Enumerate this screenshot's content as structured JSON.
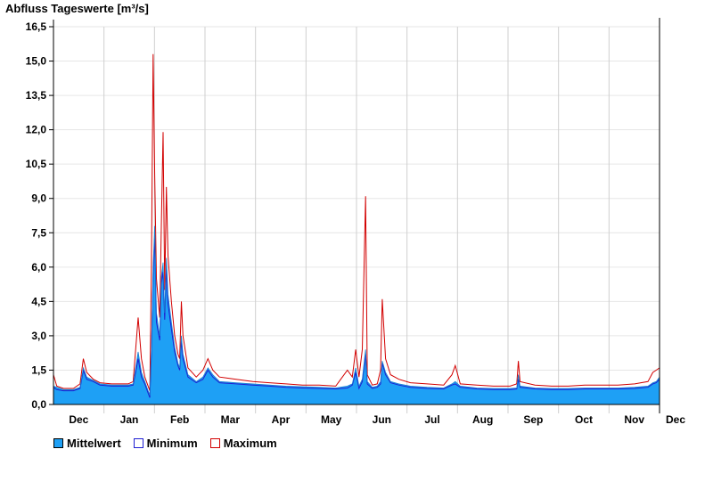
{
  "chart_data": {
    "type": "area",
    "title": "Abfluss Tageswerte [m³/s]",
    "xlabel": "",
    "ylabel": "",
    "ylim": [
      0,
      16.5
    ],
    "yticks": [
      "0,0",
      "1,5",
      "3,0",
      "4,5",
      "6,0",
      "7,5",
      "9,0",
      "10,5",
      "12,0",
      "13,5",
      "15,0",
      "16,5"
    ],
    "ytick_values": [
      0,
      1.5,
      3,
      4.5,
      6,
      7.5,
      9,
      10.5,
      12,
      13.5,
      15,
      16.5
    ],
    "months": [
      "Dec",
      "Jan",
      "Feb",
      "Mar",
      "Apr",
      "May",
      "Jun",
      "Jul",
      "Aug",
      "Sep",
      "Oct",
      "Nov",
      "Dec"
    ],
    "days_in_period": 365,
    "grid": true,
    "legend": "bottom-left",
    "colors": {
      "mean": "#1ea0f5",
      "minimum": "#1e1ed2",
      "maximum": "#d20000"
    },
    "series": [
      {
        "name": "Mittelwert",
        "points": [
          [
            0,
            0.8
          ],
          [
            2,
            0.75
          ],
          [
            6,
            0.65
          ],
          [
            12,
            0.65
          ],
          [
            16,
            0.75
          ],
          [
            18,
            1.6
          ],
          [
            20,
            1.2
          ],
          [
            24,
            1.05
          ],
          [
            28,
            0.9
          ],
          [
            35,
            0.85
          ],
          [
            45,
            0.85
          ],
          [
            48,
            0.9
          ],
          [
            51,
            2.3
          ],
          [
            53,
            1.4
          ],
          [
            55,
            1.0
          ],
          [
            57,
            0.6
          ],
          [
            58,
            0.4
          ],
          [
            59,
            2.4
          ],
          [
            60,
            6.0
          ],
          [
            61,
            7.8
          ],
          [
            62,
            4.0
          ],
          [
            64,
            3.0
          ],
          [
            65,
            5.6
          ],
          [
            66,
            6.2
          ],
          [
            67,
            4.0
          ],
          [
            68,
            6.4
          ],
          [
            69,
            4.8
          ],
          [
            71,
            3.6
          ],
          [
            73,
            2.5
          ],
          [
            75,
            1.8
          ],
          [
            76,
            1.6
          ],
          [
            77,
            3.0
          ],
          [
            78,
            2.2
          ],
          [
            81,
            1.3
          ],
          [
            86,
            1.0
          ],
          [
            90,
            1.2
          ],
          [
            93,
            1.6
          ],
          [
            96,
            1.3
          ],
          [
            100,
            1.0
          ],
          [
            110,
            0.95
          ],
          [
            120,
            0.9
          ],
          [
            130,
            0.85
          ],
          [
            140,
            0.8
          ],
          [
            150,
            0.78
          ],
          [
            160,
            0.75
          ],
          [
            170,
            0.72
          ],
          [
            177,
            0.8
          ],
          [
            180,
            0.9
          ],
          [
            182,
            1.6
          ],
          [
            184,
            0.8
          ],
          [
            186,
            1.1
          ],
          [
            188,
            2.4
          ],
          [
            189,
            1.0
          ],
          [
            192,
            0.75
          ],
          [
            195,
            0.8
          ],
          [
            197,
            1.0
          ],
          [
            198,
            1.9
          ],
          [
            200,
            1.4
          ],
          [
            203,
            1.0
          ],
          [
            208,
            0.9
          ],
          [
            215,
            0.8
          ],
          [
            225,
            0.75
          ],
          [
            235,
            0.72
          ],
          [
            240,
            0.9
          ],
          [
            242,
            1.0
          ],
          [
            245,
            0.8
          ],
          [
            255,
            0.72
          ],
          [
            265,
            0.7
          ],
          [
            275,
            0.7
          ],
          [
            279,
            0.72
          ],
          [
            280,
            1.3
          ],
          [
            281,
            0.8
          ],
          [
            290,
            0.72
          ],
          [
            300,
            0.7
          ],
          [
            310,
            0.7
          ],
          [
            320,
            0.72
          ],
          [
            330,
            0.72
          ],
          [
            340,
            0.72
          ],
          [
            350,
            0.75
          ],
          [
            358,
            0.8
          ],
          [
            361,
            0.95
          ],
          [
            363,
            1.0
          ],
          [
            365,
            1.2
          ]
        ]
      },
      {
        "name": "Minimum",
        "points": [
          [
            0,
            0.75
          ],
          [
            2,
            0.65
          ],
          [
            6,
            0.6
          ],
          [
            12,
            0.6
          ],
          [
            16,
            0.7
          ],
          [
            18,
            1.5
          ],
          [
            20,
            1.1
          ],
          [
            24,
            1.0
          ],
          [
            28,
            0.85
          ],
          [
            35,
            0.8
          ],
          [
            45,
            0.8
          ],
          [
            48,
            0.85
          ],
          [
            51,
            2.0
          ],
          [
            53,
            1.2
          ],
          [
            55,
            0.9
          ],
          [
            57,
            0.5
          ],
          [
            58,
            0.3
          ],
          [
            59,
            2.2
          ],
          [
            60,
            5.6
          ],
          [
            61,
            7.4
          ],
          [
            62,
            3.6
          ],
          [
            64,
            2.8
          ],
          [
            65,
            5.3
          ],
          [
            66,
            5.8
          ],
          [
            67,
            3.7
          ],
          [
            68,
            6.0
          ],
          [
            69,
            4.4
          ],
          [
            71,
            3.3
          ],
          [
            73,
            2.3
          ],
          [
            75,
            1.7
          ],
          [
            76,
            1.5
          ],
          [
            77,
            2.8
          ],
          [
            78,
            2.0
          ],
          [
            81,
            1.2
          ],
          [
            86,
            0.95
          ],
          [
            90,
            1.1
          ],
          [
            93,
            1.5
          ],
          [
            96,
            1.2
          ],
          [
            100,
            0.95
          ],
          [
            110,
            0.9
          ],
          [
            120,
            0.85
          ],
          [
            130,
            0.8
          ],
          [
            140,
            0.75
          ],
          [
            150,
            0.72
          ],
          [
            160,
            0.7
          ],
          [
            170,
            0.68
          ],
          [
            177,
            0.72
          ],
          [
            180,
            0.85
          ],
          [
            182,
            1.4
          ],
          [
            184,
            0.7
          ],
          [
            186,
            1.0
          ],
          [
            188,
            2.2
          ],
          [
            189,
            0.9
          ],
          [
            192,
            0.7
          ],
          [
            195,
            0.75
          ],
          [
            197,
            0.9
          ],
          [
            198,
            1.8
          ],
          [
            200,
            1.3
          ],
          [
            203,
            0.95
          ],
          [
            208,
            0.85
          ],
          [
            215,
            0.75
          ],
          [
            225,
            0.7
          ],
          [
            235,
            0.68
          ],
          [
            240,
            0.85
          ],
          [
            242,
            0.9
          ],
          [
            245,
            0.75
          ],
          [
            255,
            0.68
          ],
          [
            265,
            0.65
          ],
          [
            275,
            0.65
          ],
          [
            279,
            0.68
          ],
          [
            280,
            1.1
          ],
          [
            281,
            0.75
          ],
          [
            290,
            0.68
          ],
          [
            300,
            0.65
          ],
          [
            310,
            0.65
          ],
          [
            320,
            0.68
          ],
          [
            330,
            0.68
          ],
          [
            340,
            0.68
          ],
          [
            350,
            0.7
          ],
          [
            358,
            0.75
          ],
          [
            361,
            0.9
          ],
          [
            363,
            0.95
          ],
          [
            365,
            1.1
          ]
        ]
      },
      {
        "name": "Maximum",
        "points": [
          [
            0,
            1.3
          ],
          [
            2,
            0.8
          ],
          [
            6,
            0.7
          ],
          [
            12,
            0.7
          ],
          [
            16,
            0.9
          ],
          [
            18,
            2.0
          ],
          [
            20,
            1.4
          ],
          [
            24,
            1.1
          ],
          [
            28,
            0.95
          ],
          [
            35,
            0.9
          ],
          [
            45,
            0.9
          ],
          [
            48,
            1.0
          ],
          [
            51,
            3.8
          ],
          [
            53,
            2.0
          ],
          [
            55,
            1.2
          ],
          [
            57,
            0.8
          ],
          [
            58,
            0.6
          ],
          [
            59,
            6.0
          ],
          [
            60,
            15.3
          ],
          [
            61,
            10.0
          ],
          [
            62,
            5.5
          ],
          [
            64,
            3.8
          ],
          [
            65,
            8.0
          ],
          [
            66,
            11.9
          ],
          [
            67,
            5.0
          ],
          [
            68,
            9.5
          ],
          [
            69,
            6.5
          ],
          [
            71,
            4.5
          ],
          [
            73,
            3.0
          ],
          [
            75,
            2.2
          ],
          [
            76,
            2.0
          ],
          [
            77,
            4.5
          ],
          [
            78,
            3.0
          ],
          [
            81,
            1.6
          ],
          [
            86,
            1.2
          ],
          [
            90,
            1.5
          ],
          [
            93,
            2.0
          ],
          [
            96,
            1.5
          ],
          [
            100,
            1.2
          ],
          [
            110,
            1.1
          ],
          [
            120,
            1.0
          ],
          [
            130,
            0.95
          ],
          [
            140,
            0.9
          ],
          [
            150,
            0.85
          ],
          [
            160,
            0.85
          ],
          [
            170,
            0.8
          ],
          [
            177,
            1.5
          ],
          [
            180,
            1.2
          ],
          [
            182,
            2.4
          ],
          [
            184,
            1.2
          ],
          [
            186,
            2.4
          ],
          [
            188,
            9.1
          ],
          [
            189,
            1.3
          ],
          [
            192,
            0.85
          ],
          [
            195,
            0.9
          ],
          [
            197,
            1.5
          ],
          [
            198,
            4.6
          ],
          [
            200,
            2.0
          ],
          [
            203,
            1.3
          ],
          [
            208,
            1.1
          ],
          [
            215,
            0.95
          ],
          [
            225,
            0.9
          ],
          [
            235,
            0.85
          ],
          [
            240,
            1.3
          ],
          [
            242,
            1.7
          ],
          [
            245,
            0.9
          ],
          [
            255,
            0.85
          ],
          [
            265,
            0.8
          ],
          [
            275,
            0.8
          ],
          [
            279,
            0.9
          ],
          [
            280,
            1.9
          ],
          [
            281,
            1.0
          ],
          [
            290,
            0.85
          ],
          [
            300,
            0.8
          ],
          [
            310,
            0.8
          ],
          [
            320,
            0.85
          ],
          [
            330,
            0.85
          ],
          [
            340,
            0.85
          ],
          [
            350,
            0.9
          ],
          [
            358,
            1.0
          ],
          [
            361,
            1.4
          ],
          [
            363,
            1.5
          ],
          [
            365,
            1.6
          ]
        ]
      }
    ]
  }
}
